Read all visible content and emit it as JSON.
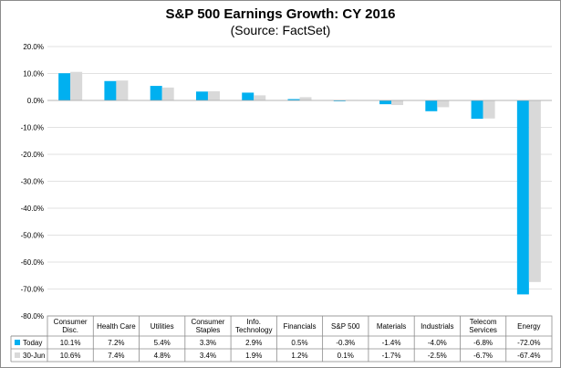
{
  "chart_data": {
    "type": "bar",
    "title": "S&P 500 Earnings Growth: CY 2016",
    "subtitle": "(Source: FactSet)",
    "xlabel": "",
    "ylabel": "",
    "ylim": [
      -80,
      20
    ],
    "yticks": [
      20,
      10,
      0,
      -10,
      -20,
      -30,
      -40,
      -50,
      -60,
      -70,
      -80
    ],
    "ytick_labels": [
      "20.0%",
      "10.0%",
      "0.0%",
      "-10.0%",
      "-20.0%",
      "-30.0%",
      "-40.0%",
      "-50.0%",
      "-60.0%",
      "-70.0%",
      "-80.0%"
    ],
    "grid": "horizontal",
    "legend_placement": "data-table-left",
    "categories": [
      [
        "Consumer",
        "Disc."
      ],
      [
        "Health Care"
      ],
      [
        "Utilities"
      ],
      [
        "Consumer",
        "Staples"
      ],
      [
        "Info.",
        "Technology"
      ],
      [
        "Financials"
      ],
      [
        "S&P 500"
      ],
      [
        "Materials"
      ],
      [
        "Industrials"
      ],
      [
        "Telecom",
        "Services"
      ],
      [
        "Energy"
      ]
    ],
    "series": [
      {
        "name": "Today",
        "color": "#00b0f0",
        "values": [
          10.1,
          7.2,
          5.4,
          3.3,
          2.9,
          0.5,
          -0.3,
          -1.4,
          -4.0,
          -6.8,
          -72.0
        ],
        "labels": [
          "10.1%",
          "7.2%",
          "5.4%",
          "3.3%",
          "2.9%",
          "0.5%",
          "-0.3%",
          "-1.4%",
          "-4.0%",
          "-6.8%",
          "-72.0%"
        ]
      },
      {
        "name": "30-Jun",
        "color": "#d9d9d9",
        "values": [
          10.6,
          7.4,
          4.8,
          3.4,
          1.9,
          1.2,
          0.1,
          -1.7,
          -2.5,
          -6.7,
          -67.4
        ],
        "labels": [
          "10.6%",
          "7.4%",
          "4.8%",
          "3.4%",
          "1.9%",
          "1.2%",
          "0.1%",
          "-1.7%",
          "-2.5%",
          "-6.7%",
          "-67.4%"
        ]
      }
    ]
  }
}
